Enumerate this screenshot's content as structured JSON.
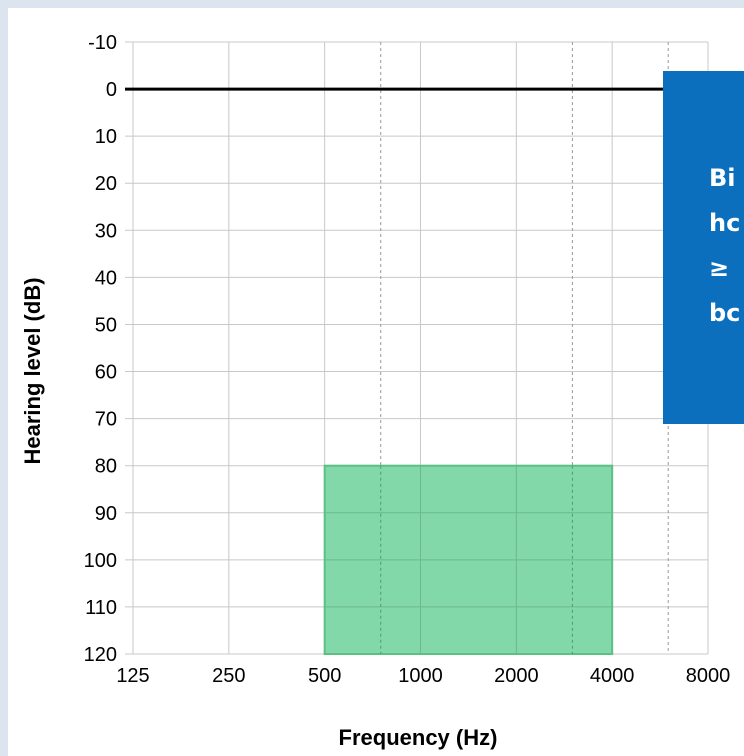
{
  "chart_data": {
    "type": "area",
    "xlabel": "Frequency (Hz)",
    "ylabel": "Hearing level (dB)",
    "x_ticks": [
      "125",
      "250",
      "500",
      "1000",
      "2000",
      "4000",
      "8000"
    ],
    "y_ticks": [
      "-10",
      "0",
      "10",
      "20",
      "30",
      "40",
      "50",
      "60",
      "70",
      "80",
      "90",
      "100",
      "110",
      "120"
    ],
    "ylim": [
      -10,
      120
    ],
    "y_inverted": true,
    "x_scale": "log2",
    "reference_line_db": 0,
    "dashed_gridlines_hz": [
      750,
      3000,
      6000
    ],
    "shaded_region": {
      "x_from": 500,
      "x_to": 4000,
      "y_from": 80,
      "y_to": 120
    },
    "grid": true
  },
  "callout": {
    "lines": [
      "Bi",
      "hc",
      "≥",
      "bc"
    ]
  },
  "colors": {
    "region_fill": "#82d8a8",
    "region_border": "#5bbf86",
    "callout_bg": "#0b6fbd",
    "page_bg": "#dce4ef"
  }
}
